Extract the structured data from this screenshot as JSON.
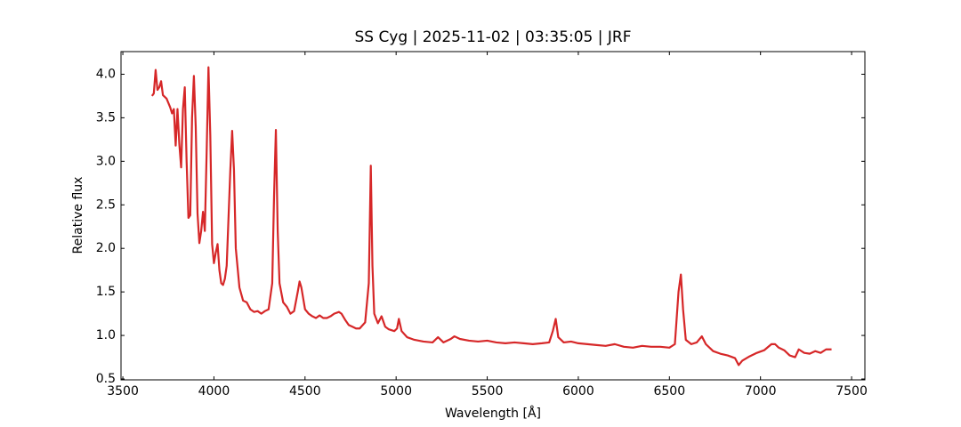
{
  "chart_data": {
    "type": "line",
    "title": "SS Cyg | 2025-11-02 | 03:35:05 | JRF",
    "xlabel": "Wavelength [Å]",
    "ylabel": "Relative flux",
    "color": "#d62728",
    "xlim": [
      3490,
      7573
    ],
    "ylim": [
      0.49,
      4.26
    ],
    "xticks": [
      3500,
      4000,
      4500,
      5000,
      5500,
      6000,
      6500,
      7000,
      7500
    ],
    "yticks": [
      0.5,
      {
        "value": 1,
        "label": "1.0"
      },
      1.5,
      {
        "value": 2,
        "label": "2.0"
      },
      2.5,
      {
        "value": 3,
        "label": "3.0"
      },
      3.5,
      {
        "value": 4,
        "label": "4.0"
      }
    ],
    "x": [
      3660,
      3670,
      3680,
      3690,
      3700,
      3710,
      3720,
      3740,
      3760,
      3770,
      3780,
      3790,
      3800,
      3810,
      3820,
      3830,
      3840,
      3850,
      3860,
      3870,
      3880,
      3890,
      3900,
      3910,
      3920,
      3930,
      3940,
      3950,
      3960,
      3970,
      3980,
      3990,
      4000,
      4010,
      4020,
      4030,
      4040,
      4050,
      4060,
      4070,
      4090,
      4100,
      4110,
      4120,
      4140,
      4160,
      4180,
      4200,
      4220,
      4240,
      4260,
      4280,
      4300,
      4320,
      4330,
      4340,
      4350,
      4360,
      4380,
      4400,
      4420,
      4440,
      4460,
      4470,
      4480,
      4500,
      4520,
      4540,
      4560,
      4580,
      4600,
      4620,
      4640,
      4660,
      4686,
      4700,
      4720,
      4740,
      4760,
      4780,
      4800,
      4830,
      4850,
      4861,
      4870,
      4880,
      4900,
      4920,
      4940,
      4960,
      4990,
      5005,
      5015,
      5030,
      5060,
      5100,
      5150,
      5200,
      5230,
      5260,
      5300,
      5320,
      5350,
      5400,
      5450,
      5500,
      5550,
      5600,
      5650,
      5700,
      5750,
      5800,
      5840,
      5860,
      5876,
      5890,
      5920,
      5960,
      6000,
      6050,
      6100,
      6150,
      6200,
      6250,
      6300,
      6350,
      6400,
      6450,
      6500,
      6530,
      6550,
      6563,
      6575,
      6590,
      6620,
      6650,
      6678,
      6700,
      6740,
      6780,
      6820,
      6860,
      6880,
      6900,
      6940,
      6980,
      7020,
      7060,
      7080,
      7100,
      7130,
      7160,
      7190,
      7210,
      7240,
      7270,
      7300,
      7330,
      7360,
      7390
    ],
    "values": [
      3.75,
      3.78,
      4.05,
      3.82,
      3.85,
      3.92,
      3.76,
      3.72,
      3.62,
      3.55,
      3.6,
      3.18,
      3.6,
      3.2,
      2.93,
      3.6,
      3.85,
      3.0,
      2.35,
      2.38,
      3.5,
      3.98,
      3.4,
      2.4,
      2.06,
      2.2,
      2.42,
      2.2,
      3.1,
      4.08,
      3.3,
      2.05,
      1.83,
      1.95,
      2.05,
      1.75,
      1.6,
      1.58,
      1.65,
      1.8,
      2.9,
      3.35,
      2.9,
      2.0,
      1.55,
      1.4,
      1.38,
      1.3,
      1.27,
      1.28,
      1.25,
      1.28,
      1.3,
      1.6,
      2.6,
      3.36,
      2.2,
      1.6,
      1.38,
      1.33,
      1.25,
      1.28,
      1.5,
      1.62,
      1.55,
      1.3,
      1.25,
      1.22,
      1.2,
      1.23,
      1.2,
      1.2,
      1.22,
      1.25,
      1.27,
      1.25,
      1.18,
      1.12,
      1.1,
      1.08,
      1.08,
      1.15,
      1.6,
      2.95,
      1.8,
      1.25,
      1.14,
      1.22,
      1.1,
      1.07,
      1.05,
      1.08,
      1.19,
      1.05,
      0.98,
      0.95,
      0.93,
      0.92,
      0.98,
      0.92,
      0.96,
      0.99,
      0.96,
      0.94,
      0.93,
      0.94,
      0.92,
      0.91,
      0.92,
      0.91,
      0.9,
      0.91,
      0.92,
      1.05,
      1.19,
      0.98,
      0.92,
      0.93,
      0.91,
      0.9,
      0.89,
      0.88,
      0.9,
      0.87,
      0.86,
      0.88,
      0.87,
      0.87,
      0.86,
      0.9,
      1.5,
      1.7,
      1.3,
      0.95,
      0.9,
      0.92,
      0.99,
      0.9,
      0.82,
      0.79,
      0.77,
      0.74,
      0.66,
      0.71,
      0.76,
      0.8,
      0.83,
      0.9,
      0.9,
      0.86,
      0.83,
      0.77,
      0.75,
      0.84,
      0.8,
      0.79,
      0.82,
      0.8,
      0.84,
      0.84
    ]
  }
}
